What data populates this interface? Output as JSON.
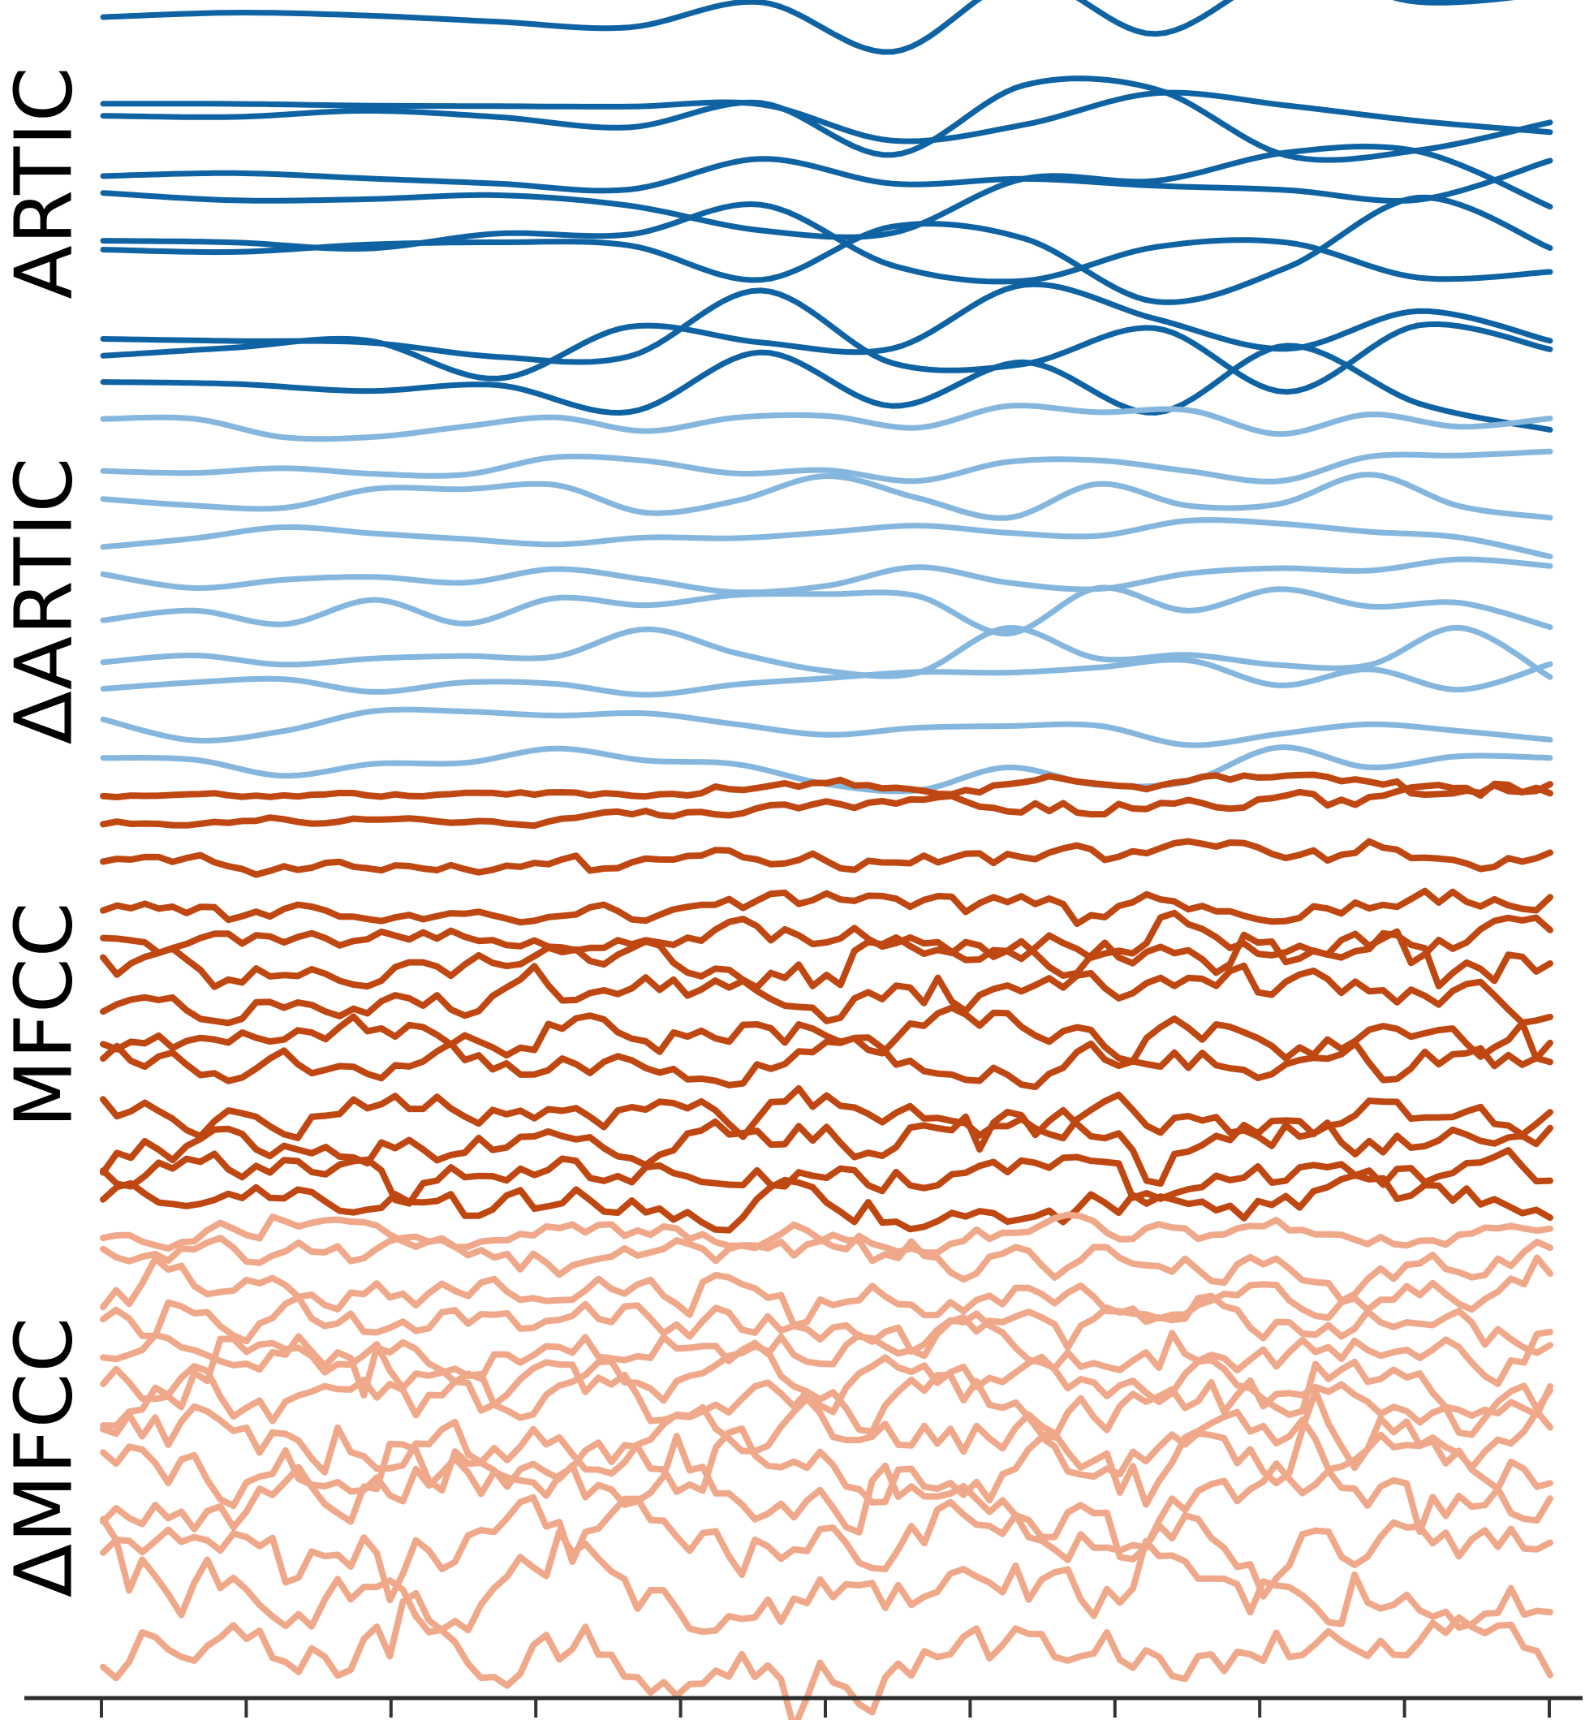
{
  "figure": {
    "description": "Stacked feature trajectories over time: articulatory features, delta articulatory features, MFCCs and delta MFCCs",
    "background": "#ffffff"
  },
  "chart_data": {
    "type": "line",
    "title": "",
    "xlabel": "",
    "ylabel": "",
    "legend": "none",
    "grid": false,
    "x_axis": {
      "visible": true,
      "tick_count": 11,
      "tick_labels": [],
      "spine_color": "#2b2b2b",
      "tick_color": "#333333"
    },
    "y_axis": {
      "visible": false
    },
    "groups": [
      {
        "label": "ARTIC",
        "color": "#0f63a3",
        "mode": "smooth",
        "linewidth": 7,
        "control_points": 12,
        "label_center_y": 225,
        "traces": [
          {
            "b": 18,
            "a": 52,
            "s": 11,
            "t0": 0.37,
            "base": 0.07
          },
          {
            "b": 130,
            "a": 62,
            "s": 12,
            "t0": 0.33,
            "base": 0.06
          },
          {
            "b": 142,
            "a": 58,
            "s": 13,
            "t0": 0.35,
            "base": 0.06
          },
          {
            "b": 215,
            "a": 55,
            "s": 14,
            "t0": 0.34,
            "base": 0.07
          },
          {
            "b": 242,
            "a": 62,
            "s": 15,
            "t0": 0.32,
            "base": 0.07
          },
          {
            "b": 297,
            "a": 70,
            "s": 16,
            "t0": 0.31,
            "base": 0.06
          },
          {
            "b": 311,
            "a": 76,
            "s": 17,
            "t0": 0.3,
            "base": 0.06
          },
          {
            "b": 415,
            "a": 78,
            "s": 18,
            "t0": 0.29,
            "base": 0.06
          },
          {
            "b": 433,
            "a": 84,
            "s": 19,
            "t0": 0.28,
            "base": 0.06
          },
          {
            "b": 473,
            "a": 70,
            "s": 20,
            "t0": 0.33,
            "base": 0.07
          }
        ]
      },
      {
        "label": "ΔARTIC",
        "color": "#85b7de",
        "mode": "smooth",
        "linewidth": 7,
        "control_points": 17,
        "label_center_y": 740,
        "traces": [
          {
            "b": 525,
            "a": 26,
            "s": 21,
            "t0": 0.4,
            "base": 0.55
          },
          {
            "b": 575,
            "a": 22,
            "s": 22,
            "t0": 0.4,
            "base": 0.55
          },
          {
            "b": 613,
            "a": 30,
            "s": 23,
            "t0": 0.38,
            "base": 0.55
          },
          {
            "b": 662,
            "a": 24,
            "s": 24,
            "t0": 0.4,
            "base": 0.55
          },
          {
            "b": 713,
            "a": 26,
            "s": 25,
            "t0": 0.42,
            "base": 0.55
          },
          {
            "b": 753,
            "a": 30,
            "s": 26,
            "t0": 0.4,
            "base": 0.55
          },
          {
            "b": 805,
            "a": 38,
            "s": 27,
            "t0": 0.35,
            "base": 0.55
          },
          {
            "b": 847,
            "a": 34,
            "s": 28,
            "t0": 0.38,
            "base": 0.55
          },
          {
            "b": 895,
            "a": 36,
            "s": 29,
            "t0": 0.4,
            "base": 0.55
          },
          {
            "b": 942,
            "a": 40,
            "s": 30,
            "t0": 0.4,
            "base": 0.5
          }
        ]
      },
      {
        "label": "MFCC",
        "color": "#bf4712",
        "mode": "jagged",
        "linewidth": 8,
        "samples": 105,
        "label_center_y": 1250,
        "traces": [
          {
            "b": 980,
            "a": 9,
            "s": 31,
            "t0": 0.42,
            "base": 0.35,
            "drift": 16
          },
          {
            "b": 1013,
            "a": 11,
            "s": 32,
            "t0": 0.42,
            "base": 0.35,
            "drift": 30
          },
          {
            "b": 1065,
            "a": 15,
            "s": 33,
            "t0": 0.4,
            "base": 0.55,
            "drift": 10
          },
          {
            "b": 1123,
            "a": 17,
            "s": 34,
            "t0": 0.4,
            "base": 0.6,
            "drift": 18
          },
          {
            "b": 1157,
            "a": 22,
            "s": 35,
            "t0": 0.4,
            "base": 0.65,
            "drift": 0
          },
          {
            "b": 1185,
            "a": 26,
            "s": 36,
            "t0": 0.4,
            "base": 0.7,
            "drift": 0
          },
          {
            "b": 1233,
            "a": 30,
            "s": 37,
            "t0": 0.4,
            "base": 0.75,
            "drift": 0
          },
          {
            "b": 1273,
            "a": 28,
            "s": 38,
            "t0": 0.4,
            "base": 0.8,
            "drift": 0
          },
          {
            "b": 1305,
            "a": 26,
            "s": 39,
            "t0": 0.4,
            "base": 0.85,
            "drift": 0
          },
          {
            "b": 1370,
            "a": 30,
            "s": 40,
            "t0": 0.4,
            "base": 0.85,
            "drift": 0
          },
          {
            "b": 1403,
            "a": 30,
            "s": 41,
            "t0": 0.4,
            "base": 0.85,
            "drift": 0
          },
          {
            "b": 1447,
            "a": 26,
            "s": 42,
            "t0": 0.4,
            "base": 0.9,
            "drift": 0
          },
          {
            "b": 1480,
            "a": 26,
            "s": 43,
            "t0": 0.4,
            "base": 0.9,
            "drift": 0
          }
        ]
      },
      {
        "label": "ΔMFCC",
        "color": "#efa98a",
        "mode": "jagged",
        "linewidth": 8,
        "samples": 112,
        "label_center_y": 1795,
        "traces": [
          {
            "b": 1520,
            "a": 16,
            "s": 51,
            "t0": 0.5,
            "base": 1,
            "drift": 0
          },
          {
            "b": 1556,
            "a": 24,
            "s": 52,
            "t0": 0.5,
            "base": 1,
            "drift": 0
          },
          {
            "b": 1594,
            "a": 24,
            "s": 53,
            "t0": 0.5,
            "base": 1,
            "drift": 0
          },
          {
            "b": 1630,
            "a": 28,
            "s": 54,
            "t0": 0.5,
            "base": 1,
            "drift": 0
          },
          {
            "b": 1665,
            "a": 30,
            "s": 55,
            "t0": 0.5,
            "base": 1,
            "drift": 0
          },
          {
            "b": 1700,
            "a": 32,
            "s": 56,
            "t0": 0.5,
            "base": 1,
            "drift": 0
          },
          {
            "b": 1737,
            "a": 38,
            "s": 57,
            "t0": 0.5,
            "base": 1,
            "drift": 0
          },
          {
            "b": 1773,
            "a": 38,
            "s": 58,
            "t0": 0.5,
            "base": 1,
            "drift": 0
          },
          {
            "b": 1810,
            "a": 40,
            "s": 59,
            "t0": 0.5,
            "base": 1,
            "drift": 0
          },
          {
            "b": 1850,
            "a": 40,
            "s": 60,
            "t0": 0.5,
            "base": 1,
            "drift": 0
          },
          {
            "b": 1895,
            "a": 42,
            "s": 61,
            "t0": 0.5,
            "base": 1,
            "drift": 0
          },
          {
            "b": 1960,
            "a": 46,
            "s": 62,
            "t0": 0.5,
            "base": 1,
            "drift": 0
          },
          {
            "b": 2030,
            "a": 44,
            "s": 63,
            "t0": 0.5,
            "base": 1,
            "drift": 0
          }
        ]
      }
    ]
  }
}
